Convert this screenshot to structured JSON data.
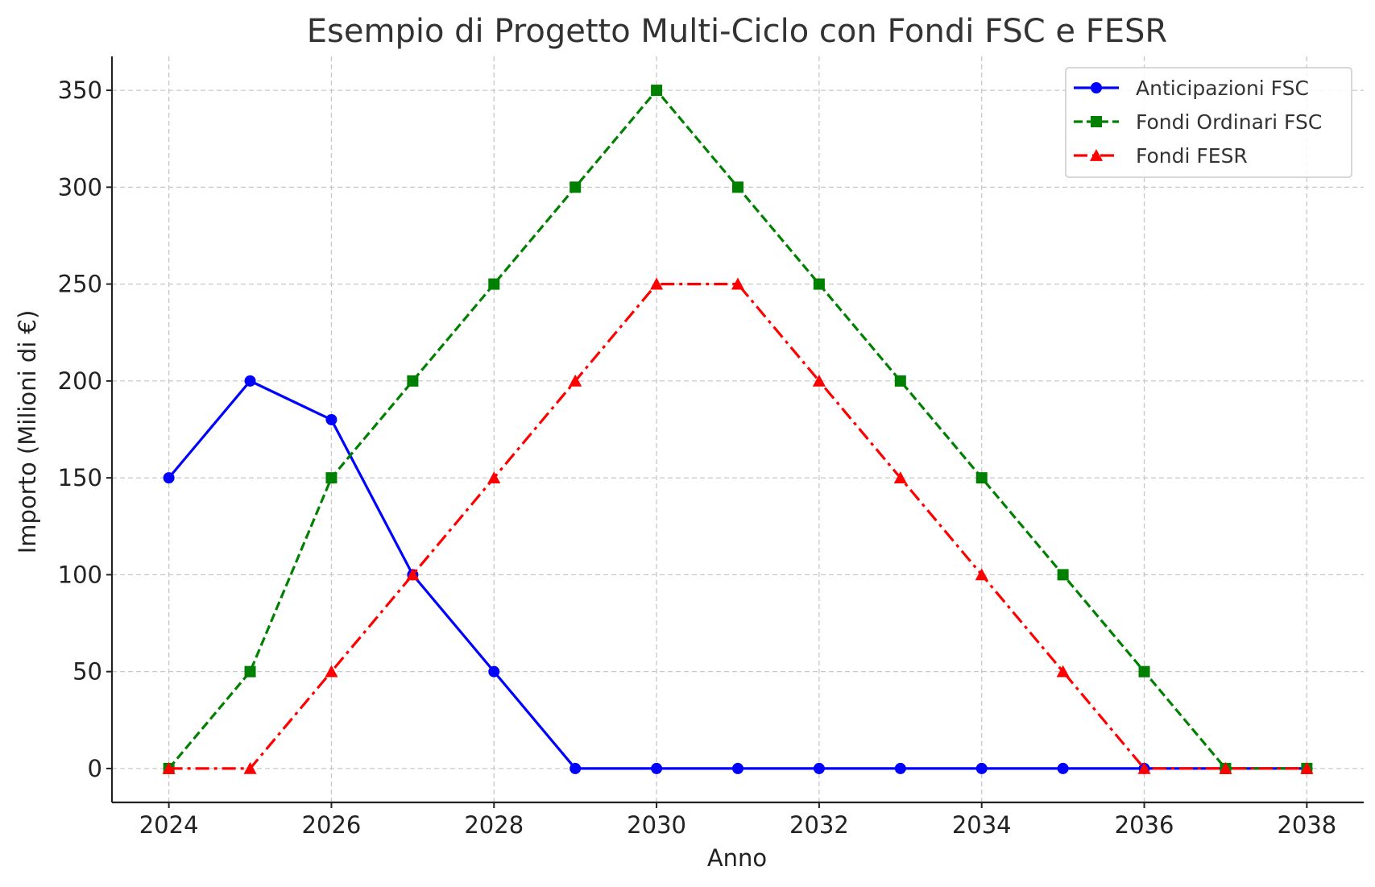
{
  "chart_data": {
    "type": "line",
    "title": "Esempio di Progetto Multi-Ciclo con Fondi FSC e FESR",
    "xlabel": "Anno",
    "ylabel": "Importo (Milioni di €)",
    "x": [
      2024,
      2025,
      2026,
      2027,
      2028,
      2029,
      2030,
      2031,
      2032,
      2033,
      2034,
      2035,
      2036,
      2037,
      2038
    ],
    "xlim": [
      2023.3,
      2038.7
    ],
    "ylim": [
      -17.5,
      367.5
    ],
    "xticks": [
      2024,
      2026,
      2028,
      2030,
      2032,
      2034,
      2036,
      2038
    ],
    "yticks": [
      0,
      50,
      100,
      150,
      200,
      250,
      300,
      350
    ],
    "grid": true,
    "legend_position": "top-right",
    "series": [
      {
        "name": "Anticipazioni FSC",
        "color": "#0000ff",
        "line_style": "solid",
        "marker": "circle",
        "values": [
          150,
          200,
          180,
          100,
          50,
          0,
          0,
          0,
          0,
          0,
          0,
          0,
          0,
          0,
          0
        ]
      },
      {
        "name": "Fondi Ordinari FSC",
        "color": "#008000",
        "line_style": "dashed",
        "marker": "square",
        "values": [
          0,
          50,
          150,
          200,
          250,
          300,
          350,
          300,
          250,
          200,
          150,
          100,
          50,
          0,
          0
        ]
      },
      {
        "name": "Fondi FESR",
        "color": "#ff0000",
        "line_style": "dashdot",
        "marker": "triangle",
        "values": [
          0,
          0,
          50,
          100,
          150,
          200,
          250,
          250,
          200,
          150,
          100,
          50,
          0,
          0,
          0
        ]
      }
    ]
  }
}
